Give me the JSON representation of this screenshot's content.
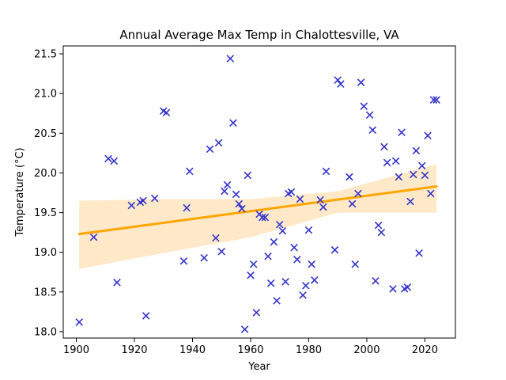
{
  "chart_data": {
    "type": "scatter",
    "title": "Annual Average Max Temp in Chalottesville, VA",
    "xlabel": "Year",
    "ylabel": "Temperature ($^{\\circ}$C)",
    "ylabel_display": "Temperature (°C)",
    "xlim": [
      1895.5,
      2030.5
    ],
    "ylim": [
      17.92,
      21.6
    ],
    "x_ticks": [
      1900,
      1920,
      1940,
      1960,
      1980,
      2000,
      2020
    ],
    "y_ticks": [
      18.0,
      18.5,
      19.0,
      19.5,
      20.0,
      20.5,
      21.0,
      21.5
    ],
    "y_tick_labels": [
      "18.0",
      "18.5",
      "19.0",
      "19.5",
      "20.0",
      "20.5",
      "21.0",
      "21.5"
    ],
    "grid": false,
    "legend": "none",
    "colors": {
      "points": "#3333cc",
      "trend": "#ffa500",
      "band": "#ffe9c9"
    },
    "points": [
      [
        1901,
        18.12
      ],
      [
        1906,
        19.19
      ],
      [
        1911,
        20.18
      ],
      [
        1913,
        20.15
      ],
      [
        1914,
        18.62
      ],
      [
        1919,
        19.59
      ],
      [
        1922,
        19.63
      ],
      [
        1923,
        19.65
      ],
      [
        1924,
        18.2
      ],
      [
        1927,
        19.68
      ],
      [
        1930,
        20.78
      ],
      [
        1931,
        20.76
      ],
      [
        1937,
        18.89
      ],
      [
        1938,
        19.56
      ],
      [
        1939,
        20.02
      ],
      [
        1944,
        18.93
      ],
      [
        1946,
        20.3
      ],
      [
        1948,
        19.18
      ],
      [
        1949,
        20.38
      ],
      [
        1950,
        19.01
      ],
      [
        1951,
        19.77
      ],
      [
        1952,
        19.85
      ],
      [
        1953,
        21.44
      ],
      [
        1954,
        20.63
      ],
      [
        1955,
        19.73
      ],
      [
        1956,
        19.61
      ],
      [
        1957,
        19.55
      ],
      [
        1958,
        18.03
      ],
      [
        1959,
        19.97
      ],
      [
        1960,
        18.71
      ],
      [
        1961,
        18.85
      ],
      [
        1962,
        18.24
      ],
      [
        1963,
        19.48
      ],
      [
        1964,
        19.44
      ],
      [
        1965,
        19.44
      ],
      [
        1966,
        18.95
      ],
      [
        1967,
        18.61
      ],
      [
        1968,
        19.13
      ],
      [
        1969,
        18.39
      ],
      [
        1970,
        19.35
      ],
      [
        1971,
        19.27
      ],
      [
        1972,
        18.63
      ],
      [
        1973,
        19.74
      ],
      [
        1974,
        19.76
      ],
      [
        1975,
        19.06
      ],
      [
        1976,
        18.91
      ],
      [
        1977,
        19.67
      ],
      [
        1978,
        18.46
      ],
      [
        1979,
        18.58
      ],
      [
        1980,
        19.28
      ],
      [
        1981,
        18.85
      ],
      [
        1982,
        18.65
      ],
      [
        1984,
        19.66
      ],
      [
        1985,
        19.57
      ],
      [
        1986,
        20.02
      ],
      [
        1989,
        19.03
      ],
      [
        1990,
        21.17
      ],
      [
        1991,
        21.12
      ],
      [
        1994,
        19.95
      ],
      [
        1995,
        19.61
      ],
      [
        1996,
        18.85
      ],
      [
        1997,
        19.74
      ],
      [
        1998,
        21.14
      ],
      [
        1999,
        20.84
      ],
      [
        2001,
        20.73
      ],
      [
        2002,
        20.54
      ],
      [
        2003,
        18.64
      ],
      [
        2004,
        19.34
      ],
      [
        2005,
        19.25
      ],
      [
        2006,
        20.33
      ],
      [
        2007,
        20.13
      ],
      [
        2009,
        18.54
      ],
      [
        2010,
        20.15
      ],
      [
        2011,
        19.95
      ],
      [
        2012,
        20.51
      ],
      [
        2013,
        18.54
      ],
      [
        2014,
        18.56
      ],
      [
        2015,
        19.64
      ],
      [
        2016,
        19.98
      ],
      [
        2017,
        20.28
      ],
      [
        2018,
        18.99
      ],
      [
        2019,
        20.09
      ],
      [
        2020,
        19.97
      ],
      [
        2021,
        20.47
      ],
      [
        2022,
        19.74
      ],
      [
        2023,
        20.92
      ],
      [
        2024,
        20.92
      ]
    ],
    "trend_line": {
      "x": [
        1901,
        2024
      ],
      "y": [
        19.23,
        19.83
      ]
    },
    "confidence_band": {
      "x": [
        1901,
        1930,
        1960,
        1990,
        2024
      ],
      "upper": [
        19.65,
        19.67,
        19.67,
        19.77,
        20.11
      ],
      "lower": [
        18.79,
        18.99,
        19.19,
        19.5,
        19.5
      ]
    }
  }
}
